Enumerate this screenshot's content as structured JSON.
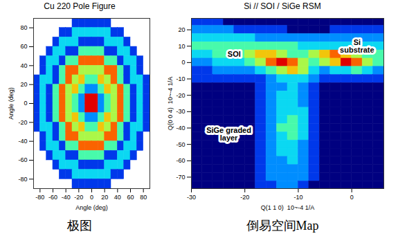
{
  "chart_data": [
    {
      "type": "heatmap",
      "title": "Cu 220 Pole Figure",
      "caption": "极图",
      "xlabel": "Angle (deg)",
      "ylabel": "Angle (deg)",
      "xlim": [
        -90,
        90
      ],
      "ylim": [
        -90,
        90
      ],
      "xticks": [
        -80,
        -60,
        -40,
        -20,
        0,
        20,
        40,
        60,
        80
      ],
      "yticks": [
        -80,
        -60,
        -40,
        -20,
        0,
        20,
        40,
        60,
        80
      ],
      "color_range": [
        1,
        9
      ],
      "cells": {
        "x": [
          -85,
          -75,
          -65,
          -55,
          -45,
          -35,
          -25,
          -15,
          -5,
          5,
          15,
          25,
          35,
          45,
          55,
          65,
          75,
          85
        ],
        "y": [
          85,
          75,
          65,
          55,
          45,
          35,
          25,
          15,
          5,
          -5,
          -15,
          -25,
          -35,
          -45,
          -55,
          -65,
          -75,
          -85
        ],
        "values": [
          [
            null,
            null,
            null,
            null,
            null,
            null,
            2,
            2,
            2,
            2,
            2,
            2,
            null,
            null,
            null,
            null,
            null,
            null
          ],
          [
            null,
            null,
            null,
            null,
            2,
            2,
            4,
            4,
            4,
            4,
            4,
            4,
            2,
            2,
            null,
            null,
            null,
            null
          ],
          [
            null,
            null,
            null,
            2,
            4,
            4,
            4,
            2,
            2,
            2,
            2,
            4,
            4,
            4,
            2,
            null,
            null,
            null
          ],
          [
            null,
            null,
            2,
            4,
            4,
            2,
            2,
            5,
            5,
            5,
            5,
            2,
            2,
            4,
            4,
            2,
            null,
            null
          ],
          [
            null,
            2,
            4,
            4,
            2,
            5,
            5,
            8,
            8,
            8,
            8,
            5,
            5,
            2,
            4,
            4,
            2,
            null
          ],
          [
            null,
            2,
            4,
            2,
            5,
            8,
            8,
            6,
            6,
            6,
            6,
            8,
            8,
            5,
            2,
            4,
            2,
            null
          ],
          [
            2,
            4,
            4,
            2,
            5,
            8,
            6,
            7,
            5,
            5,
            7,
            6,
            8,
            5,
            2,
            4,
            4,
            2
          ],
          [
            2,
            4,
            2,
            5,
            8,
            6,
            7,
            5,
            3,
            3,
            5,
            7,
            6,
            8,
            5,
            2,
            4,
            2
          ],
          [
            2,
            4,
            2,
            5,
            8,
            6,
            5,
            3,
            9,
            9,
            3,
            5,
            6,
            8,
            5,
            2,
            4,
            2
          ],
          [
            2,
            4,
            2,
            5,
            8,
            6,
            5,
            3,
            9,
            9,
            3,
            5,
            6,
            8,
            5,
            2,
            4,
            2
          ],
          [
            2,
            4,
            2,
            5,
            8,
            6,
            7,
            5,
            3,
            3,
            5,
            7,
            6,
            8,
            5,
            2,
            4,
            2
          ],
          [
            2,
            4,
            4,
            2,
            5,
            8,
            6,
            7,
            5,
            5,
            7,
            6,
            8,
            5,
            2,
            4,
            4,
            2
          ],
          [
            null,
            2,
            4,
            2,
            5,
            8,
            8,
            6,
            6,
            6,
            6,
            8,
            8,
            5,
            2,
            4,
            2,
            null
          ],
          [
            null,
            2,
            4,
            4,
            2,
            5,
            5,
            8,
            8,
            8,
            8,
            5,
            5,
            2,
            4,
            4,
            2,
            null
          ],
          [
            null,
            null,
            2,
            4,
            4,
            2,
            2,
            5,
            5,
            5,
            5,
            2,
            2,
            4,
            4,
            2,
            null,
            null
          ],
          [
            null,
            null,
            null,
            2,
            4,
            4,
            4,
            2,
            2,
            2,
            2,
            4,
            4,
            4,
            2,
            null,
            null,
            null
          ],
          [
            null,
            null,
            null,
            null,
            2,
            2,
            4,
            4,
            4,
            4,
            4,
            4,
            2,
            2,
            null,
            null,
            null,
            null
          ],
          [
            null,
            null,
            null,
            null,
            null,
            null,
            2,
            2,
            2,
            2,
            2,
            2,
            null,
            null,
            null,
            null,
            null,
            null
          ]
        ]
      }
    },
    {
      "type": "heatmap",
      "title": "Si // SOI / SiGe RSM",
      "caption": "倒易空间Map",
      "xlabel": "Q(1 1 0)  10~-4 1/A",
      "ylabel": "Q(0 0 4)  10~-4 1/A",
      "xlim": [
        -30,
        6
      ],
      "ylim": [
        -77,
        27
      ],
      "xticks": [
        -30,
        -20,
        -10,
        0
      ],
      "yticks": [
        -70,
        -60,
        -50,
        -40,
        -30,
        -20,
        -10,
        0,
        10,
        20
      ],
      "color_range": [
        1,
        9
      ],
      "annotations": [
        {
          "text": "SOI",
          "x": -22,
          "y": 5
        },
        {
          "text": "Si substrate",
          "x": 1,
          "y": 10
        },
        {
          "text": "SiGe graded layer",
          "x": -23,
          "y": -44
        }
      ],
      "cells": {
        "x": [
          -29,
          -27,
          -25,
          -23,
          -21,
          -19,
          -17,
          -15,
          -13,
          -11,
          -9,
          -7,
          -5,
          -3,
          -1,
          1,
          3,
          5
        ],
        "y": [
          25,
          20,
          15,
          10,
          5,
          0,
          -5,
          -10,
          -15,
          -20,
          -25,
          -30,
          -35,
          -40,
          -45,
          -50,
          -55,
          -60,
          -65,
          -70,
          -75
        ],
        "values": [
          [
            2,
            2,
            2,
            1,
            1,
            1,
            1,
            1,
            1,
            1,
            1,
            1,
            1,
            1,
            1,
            1,
            1,
            1
          ],
          [
            3,
            3,
            3,
            3,
            2,
            2,
            2,
            2,
            2,
            1,
            1,
            1,
            1,
            2,
            2,
            2,
            2,
            2
          ],
          [
            4,
            4,
            4,
            4,
            4,
            4,
            3,
            3,
            3,
            3,
            3,
            3,
            3,
            3,
            3,
            3,
            3,
            3
          ],
          [
            5,
            5,
            5,
            5,
            5,
            5,
            5,
            5,
            5,
            5,
            4,
            4,
            4,
            4,
            4,
            4,
            4,
            4
          ],
          [
            4,
            4,
            5,
            5,
            5,
            6,
            7,
            7,
            6,
            5,
            5,
            6,
            7,
            8,
            7,
            6,
            5,
            5
          ],
          [
            3,
            3,
            4,
            4,
            4,
            5,
            6,
            8,
            9,
            8,
            6,
            5,
            6,
            7,
            9,
            8,
            6,
            5
          ],
          [
            2,
            2,
            3,
            3,
            3,
            3,
            4,
            5,
            6,
            7,
            6,
            4,
            3,
            4,
            4,
            5,
            4,
            3
          ],
          [
            2,
            2,
            2,
            2,
            2,
            2,
            2,
            3,
            4,
            4,
            4,
            3,
            2,
            2,
            2,
            2,
            2,
            2
          ],
          [
            1,
            1,
            1,
            1,
            1,
            1,
            2,
            3,
            3,
            4,
            3,
            2,
            1,
            1,
            1,
            1,
            1,
            1
          ],
          [
            1,
            1,
            1,
            1,
            1,
            1,
            2,
            3,
            4,
            4,
            3,
            2,
            1,
            1,
            1,
            1,
            1,
            1
          ],
          [
            1,
            1,
            1,
            1,
            1,
            1,
            2,
            3,
            4,
            4,
            3,
            2,
            1,
            1,
            1,
            1,
            1,
            1
          ],
          [
            1,
            1,
            1,
            1,
            1,
            1,
            2,
            3,
            4,
            4,
            4,
            2,
            1,
            1,
            1,
            1,
            1,
            1
          ],
          [
            1,
            1,
            1,
            1,
            1,
            1,
            2,
            3,
            4,
            5,
            4,
            2,
            1,
            1,
            1,
            1,
            1,
            1
          ],
          [
            1,
            1,
            1,
            1,
            1,
            1,
            2,
            3,
            5,
            5,
            4,
            2,
            1,
            1,
            1,
            1,
            1,
            1
          ],
          [
            1,
            1,
            1,
            1,
            1,
            1,
            2,
            3,
            4,
            5,
            4,
            2,
            1,
            1,
            1,
            1,
            1,
            1
          ],
          [
            1,
            1,
            1,
            1,
            1,
            1,
            2,
            3,
            4,
            4,
            3,
            2,
            1,
            1,
            1,
            1,
            1,
            1
          ],
          [
            1,
            1,
            1,
            1,
            1,
            1,
            2,
            3,
            4,
            4,
            3,
            2,
            1,
            1,
            1,
            1,
            1,
            1
          ],
          [
            1,
            1,
            1,
            1,
            1,
            1,
            2,
            3,
            3,
            4,
            3,
            2,
            1,
            1,
            1,
            1,
            1,
            1
          ],
          [
            1,
            1,
            1,
            1,
            1,
            1,
            2,
            3,
            3,
            3,
            3,
            2,
            1,
            1,
            1,
            1,
            1,
            1
          ],
          [
            1,
            1,
            1,
            1,
            1,
            1,
            2,
            3,
            3,
            3,
            3,
            2,
            1,
            1,
            1,
            1,
            1,
            1
          ],
          [
            1,
            1,
            1,
            1,
            1,
            1,
            2,
            2,
            3,
            3,
            2,
            1,
            1,
            1,
            1,
            1,
            1,
            1
          ]
        ]
      }
    }
  ]
}
